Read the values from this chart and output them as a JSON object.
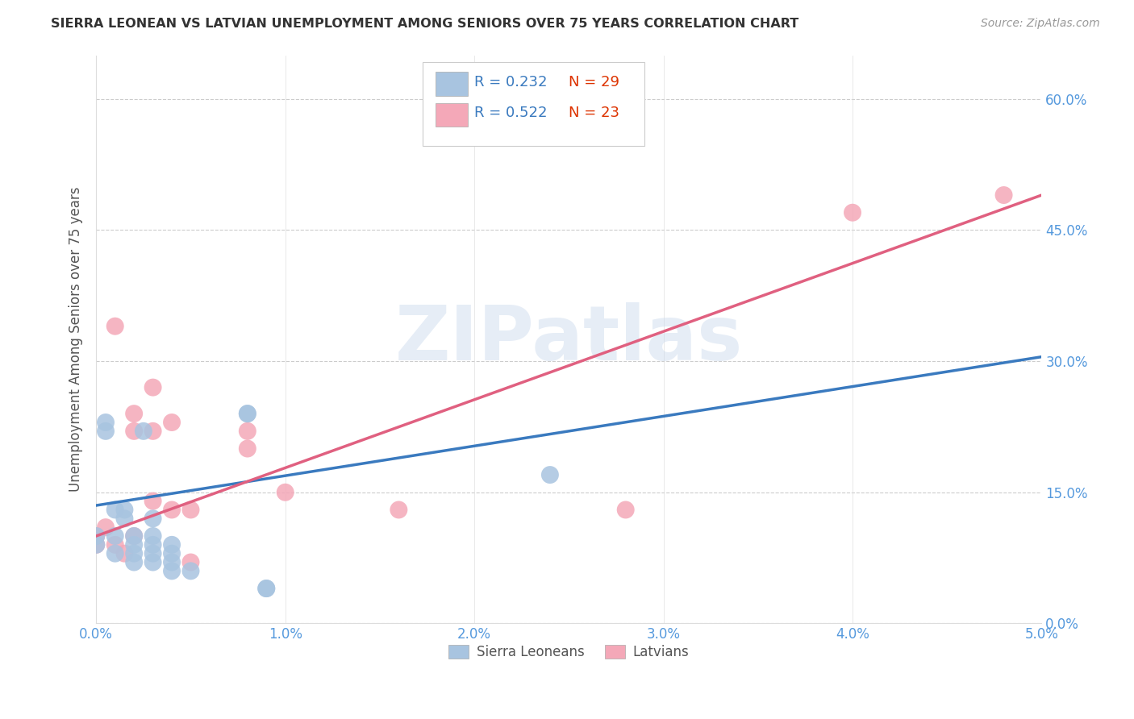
{
  "title": "SIERRA LEONEAN VS LATVIAN UNEMPLOYMENT AMONG SENIORS OVER 75 YEARS CORRELATION CHART",
  "source": "Source: ZipAtlas.com",
  "ylabel": "Unemployment Among Seniors over 75 years",
  "xlim": [
    0.0,
    0.05
  ],
  "ylim": [
    0.0,
    0.65
  ],
  "xticks": [
    0.0,
    0.01,
    0.02,
    0.03,
    0.04,
    0.05
  ],
  "xticklabels": [
    "0.0%",
    "1.0%",
    "2.0%",
    "3.0%",
    "4.0%",
    "5.0%"
  ],
  "yticks": [
    0.0,
    0.15,
    0.3,
    0.45,
    0.6
  ],
  "yticklabels": [
    "0.0%",
    "15.0%",
    "30.0%",
    "45.0%",
    "60.0%"
  ],
  "watermark": "ZIPatlas",
  "blue_color": "#a8c4e0",
  "pink_color": "#f4a8b8",
  "blue_line_color": "#3a7abf",
  "pink_line_color": "#e06080",
  "title_color": "#333333",
  "axis_color": "#555555",
  "tick_color": "#5599dd",
  "legend_r_color": "#3a7abf",
  "legend_n_color": "#dd3300",
  "grid_color": "#cccccc",
  "legend_label1": "Sierra Leoneans",
  "legend_label2": "Latvians",
  "sierra_x": [
    0.0,
    0.0,
    0.0005,
    0.0005,
    0.001,
    0.001,
    0.001,
    0.0015,
    0.0015,
    0.002,
    0.002,
    0.002,
    0.002,
    0.0025,
    0.003,
    0.003,
    0.003,
    0.003,
    0.003,
    0.004,
    0.004,
    0.004,
    0.004,
    0.005,
    0.008,
    0.008,
    0.009,
    0.009,
    0.024
  ],
  "sierra_y": [
    0.1,
    0.09,
    0.22,
    0.23,
    0.13,
    0.1,
    0.08,
    0.13,
    0.12,
    0.09,
    0.1,
    0.08,
    0.07,
    0.22,
    0.12,
    0.09,
    0.1,
    0.08,
    0.07,
    0.08,
    0.07,
    0.09,
    0.06,
    0.06,
    0.24,
    0.24,
    0.04,
    0.04,
    0.17
  ],
  "latvian_x": [
    0.0,
    0.0,
    0.0005,
    0.001,
    0.001,
    0.0015,
    0.002,
    0.002,
    0.002,
    0.003,
    0.003,
    0.003,
    0.004,
    0.004,
    0.005,
    0.005,
    0.008,
    0.008,
    0.01,
    0.016,
    0.028,
    0.04,
    0.048
  ],
  "latvian_y": [
    0.1,
    0.09,
    0.11,
    0.34,
    0.09,
    0.08,
    0.24,
    0.22,
    0.1,
    0.27,
    0.22,
    0.14,
    0.13,
    0.23,
    0.07,
    0.13,
    0.22,
    0.2,
    0.15,
    0.13,
    0.13,
    0.47,
    0.49
  ],
  "blue_trend_x": [
    0.0,
    0.05
  ],
  "blue_trend_y": [
    0.135,
    0.305
  ],
  "pink_trend_x": [
    0.0,
    0.05
  ],
  "pink_trend_y": [
    0.1,
    0.49
  ]
}
